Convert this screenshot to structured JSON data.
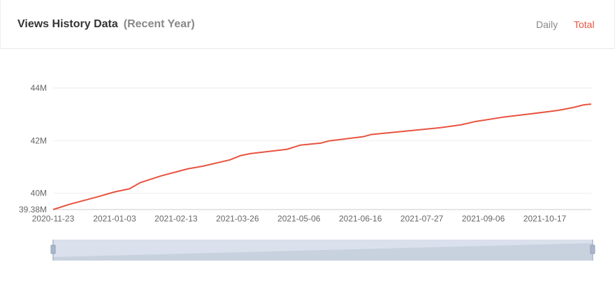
{
  "header": {
    "title": "Views History Data",
    "subtitle": "(Recent Year)",
    "tabs": [
      {
        "label": "Daily",
        "active": false
      },
      {
        "label": "Total",
        "active": true
      }
    ]
  },
  "colors": {
    "line": "#e8533f",
    "accent": "#e8533f",
    "slider": "#d6deea"
  },
  "chart_data": {
    "type": "line",
    "xlim": [
      "2020-11-23",
      "2021-11-17"
    ],
    "ylim": [
      39.38,
      44
    ],
    "y_ticks": [
      "44M",
      "42M",
      "40M",
      "39.38M"
    ],
    "y_tick_values": [
      44,
      42,
      40,
      39.38
    ],
    "x_ticks": [
      "2020-11-23",
      "2021-01-03",
      "2021-02-13",
      "2021-03-26",
      "2021-05-06",
      "2021-06-16",
      "2021-07-27",
      "2021-09-06",
      "2021-10-17"
    ],
    "grid": true,
    "data_zoom": {
      "start": 0,
      "end": 100
    },
    "points": [
      [
        "2020-11-23",
        39.38
      ],
      [
        "2020-12-04",
        39.58
      ],
      [
        "2020-12-23",
        39.87
      ],
      [
        "2021-01-03",
        40.05
      ],
      [
        "2021-01-13",
        40.17
      ],
      [
        "2021-01-20",
        40.4
      ],
      [
        "2021-02-03",
        40.66
      ],
      [
        "2021-02-21",
        40.93
      ],
      [
        "2021-03-03",
        41.03
      ],
      [
        "2021-03-21",
        41.27
      ],
      [
        "2021-03-28",
        41.43
      ],
      [
        "2021-04-04",
        41.51
      ],
      [
        "2021-04-28",
        41.67
      ],
      [
        "2021-05-07",
        41.83
      ],
      [
        "2021-05-21",
        41.91
      ],
      [
        "2021-05-26",
        41.99
      ],
      [
        "2021-06-18",
        42.15
      ],
      [
        "2021-06-23",
        42.23
      ],
      [
        "2021-07-16",
        42.36
      ],
      [
        "2021-08-08",
        42.49
      ],
      [
        "2021-08-22",
        42.6
      ],
      [
        "2021-09-01",
        42.73
      ],
      [
        "2021-09-19",
        42.89
      ],
      [
        "2021-10-08",
        43.02
      ],
      [
        "2021-10-26",
        43.15
      ],
      [
        "2021-11-05",
        43.26
      ],
      [
        "2021-11-12",
        43.36
      ],
      [
        "2021-11-17",
        43.39
      ]
    ]
  }
}
